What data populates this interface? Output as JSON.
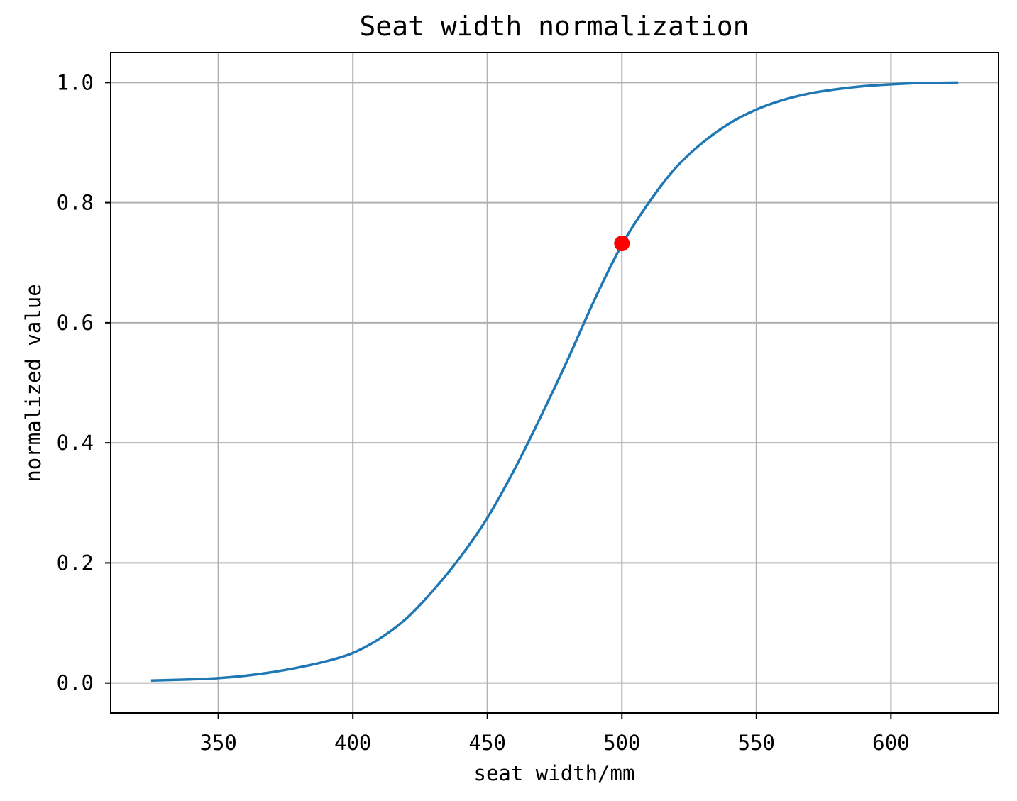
{
  "chart_data": {
    "type": "line",
    "title": "Seat width normalization",
    "xlabel": "seat width/mm",
    "ylabel": "normalized value",
    "xlim": [
      310,
      640
    ],
    "ylim": [
      -0.05,
      1.05
    ],
    "xticks": [
      350,
      400,
      450,
      500,
      550,
      600
    ],
    "xtick_labels": [
      "350",
      "400",
      "450",
      "500",
      "550",
      "600"
    ],
    "yticks": [
      0.0,
      0.2,
      0.4,
      0.6,
      0.8,
      1.0
    ],
    "ytick_labels": [
      "0.0",
      "0.2",
      "0.4",
      "0.6",
      "0.8",
      "1.0"
    ],
    "grid": true,
    "series": [
      {
        "color": "#1f77b4",
        "x": [
          325,
          340,
          350,
          360,
          370,
          380,
          390,
          400,
          410,
          420,
          430,
          440,
          450,
          460,
          470,
          480,
          490,
          500,
          510,
          520,
          530,
          540,
          550,
          560,
          570,
          580,
          590,
          600,
          610,
          625
        ],
        "y": [
          0.004,
          0.006,
          0.008,
          0.012,
          0.018,
          0.026,
          0.036,
          0.05,
          0.074,
          0.108,
          0.155,
          0.21,
          0.275,
          0.355,
          0.445,
          0.54,
          0.64,
          0.73,
          0.8,
          0.858,
          0.9,
          0.932,
          0.955,
          0.971,
          0.982,
          0.989,
          0.994,
          0.997,
          0.999,
          1.0
        ]
      }
    ],
    "highlight_point": {
      "x": 500,
      "y": 0.732,
      "color": "#ff0000"
    }
  }
}
